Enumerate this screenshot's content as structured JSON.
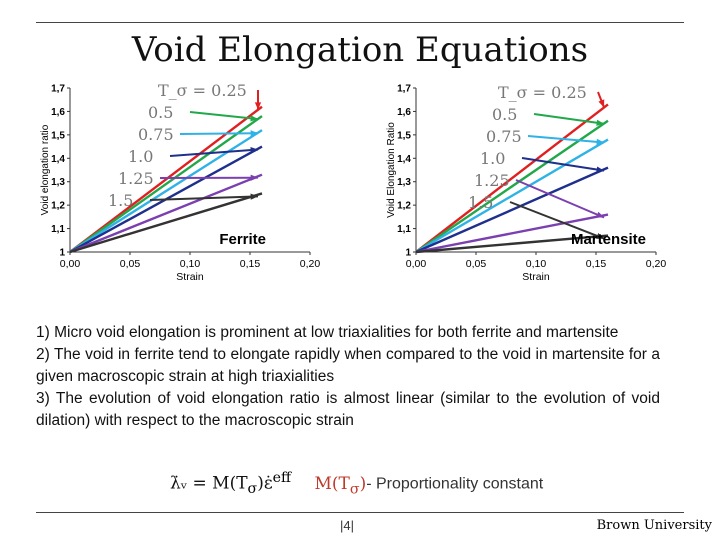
{
  "title": "Void Elongation Equations",
  "chart_data": [
    {
      "type": "line",
      "ylabel": "Void elongation ratio",
      "xlabel": "Strain",
      "annotation": "Ferrite",
      "x_ticks": [
        "0,00",
        "0,05",
        "0,10",
        "0,15",
        "0,20"
      ],
      "y_ticks": [
        "1",
        "1,1",
        "1,2",
        "1,3",
        "1,4",
        "1,5",
        "1,6",
        "1,7"
      ],
      "xlim": [
        0,
        0.2
      ],
      "ylim": [
        1,
        1.7
      ],
      "series": [
        {
          "name": "0.25",
          "color": "#e02020",
          "x": [
            0,
            0.16
          ],
          "values": [
            1,
            1.62
          ]
        },
        {
          "name": "0.5",
          "color": "#22a84a",
          "x": [
            0,
            0.16
          ],
          "values": [
            1,
            1.58
          ]
        },
        {
          "name": "0.75",
          "color": "#2fb2e6",
          "x": [
            0,
            0.16
          ],
          "values": [
            1,
            1.52
          ]
        },
        {
          "name": "1.0",
          "color": "#1f2f8c",
          "x": [
            0,
            0.16
          ],
          "values": [
            1,
            1.45
          ]
        },
        {
          "name": "1.25",
          "color": "#7b3fb0",
          "x": [
            0,
            0.16
          ],
          "values": [
            1,
            1.33
          ]
        },
        {
          "name": "1.5",
          "color": "#333333",
          "x": [
            0,
            0.16
          ],
          "values": [
            1,
            1.25
          ]
        }
      ],
      "legend_header": "T_σ = 0.25"
    },
    {
      "type": "line",
      "ylabel": "Void Elongation Ratio",
      "xlabel": "Strain",
      "annotation": "Martensite",
      "x_ticks": [
        "0,00",
        "0,05",
        "0,10",
        "0,15",
        "0,20"
      ],
      "y_ticks": [
        "1",
        "1,1",
        "1,2",
        "1,3",
        "1,4",
        "1,5",
        "1,6",
        "1,7"
      ],
      "xlim": [
        0,
        0.2
      ],
      "ylim": [
        1,
        1.7
      ],
      "series": [
        {
          "name": "0.25",
          "color": "#e02020",
          "x": [
            0,
            0.16
          ],
          "values": [
            1,
            1.63
          ]
        },
        {
          "name": "0.5",
          "color": "#22a84a",
          "x": [
            0,
            0.16
          ],
          "values": [
            1,
            1.56
          ]
        },
        {
          "name": "0.75",
          "color": "#2fb2e6",
          "x": [
            0,
            0.16
          ],
          "values": [
            1,
            1.48
          ]
        },
        {
          "name": "1.0",
          "color": "#1f2f8c",
          "x": [
            0,
            0.16
          ],
          "values": [
            1,
            1.36
          ]
        },
        {
          "name": "1.25",
          "color": "#7b3fb0",
          "x": [
            0,
            0.16
          ],
          "values": [
            1,
            1.16
          ]
        },
        {
          "name": "1.5",
          "color": "#333333",
          "x": [
            0,
            0.16
          ],
          "values": [
            1,
            1.07
          ]
        }
      ],
      "legend_header": "T_σ = 0.25"
    }
  ],
  "notes": [
    "1) Micro void elongation is prominent at low triaxialities for both ferrite and martensite",
    "2) The void in ferrite tend to elongate rapidly when compared to the void in martensite for a given macroscopic strain at high triaxialities",
    "3) The evolution of void elongation ratio is almost linear (similar to the evolution of void dilation) with respect to the macroscopic strain"
  ],
  "formula": {
    "lhs": "λ̇ᵥ = M(T",
    "sigma": "σ",
    "rhs": ")ε̇",
    "sup": "eff",
    "constant": "M(T",
    "constant_close": ")",
    "description": "- Proportionality constant"
  },
  "footer": {
    "page": "|4|",
    "brand": "Brown University"
  }
}
